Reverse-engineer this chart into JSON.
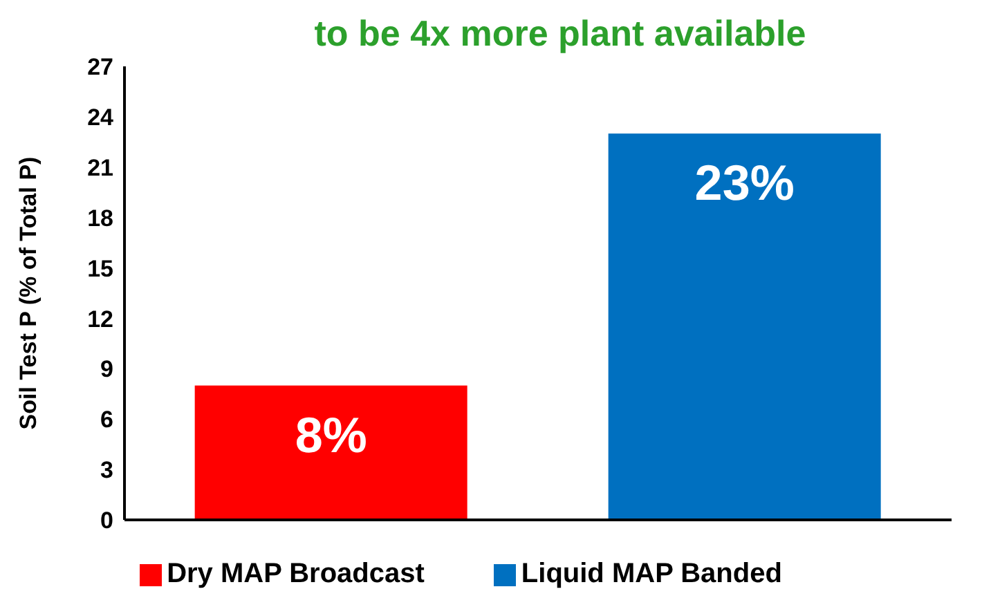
{
  "chart_data": {
    "type": "bar",
    "title": "to be 4x more plant available",
    "ylabel": "Soil Test P (% of Total P)",
    "categories": [
      null,
      null
    ],
    "series": [
      {
        "name": "Dry MAP Broadcast",
        "color": "#ff0000",
        "values": [
          8,
          null
        ],
        "value_labels": [
          "8%",
          null
        ]
      },
      {
        "name": "Liquid MAP Banded",
        "color": "#0070c0",
        "values": [
          null,
          23
        ],
        "value_labels": [
          null,
          "23%"
        ]
      }
    ],
    "ylim": [
      0,
      27
    ],
    "yticks": [
      0,
      3,
      6,
      9,
      12,
      15,
      18,
      21,
      24,
      27
    ],
    "legend": "bottom",
    "grid": false
  }
}
